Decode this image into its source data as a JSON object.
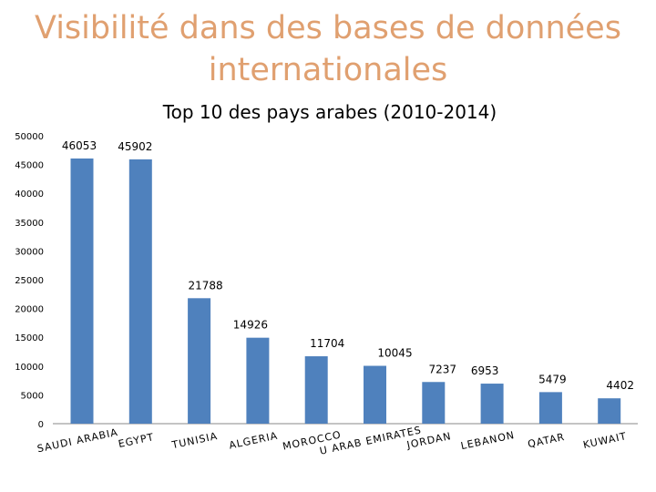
{
  "slide": {
    "title": "Visibilité dans des bases de données internationales"
  },
  "chart_data": {
    "type": "bar",
    "title": "Top 10 des pays arabes (2010-2014)",
    "xlabel": "",
    "ylabel": "",
    "ylim": [
      0,
      50000
    ],
    "yticks": [
      "0",
      "5000",
      "10000",
      "15000",
      "20000",
      "25000",
      "30000",
      "35000",
      "40000",
      "45000",
      "50000"
    ],
    "categories": [
      "SAUDI ARABIA",
      "EGYPT",
      "TUNISIA",
      "ALGERIA",
      "MOROCCO",
      "U ARAB EMIRATES",
      "JORDAN",
      "LEBANON",
      "QATAR",
      "KUWAIT"
    ],
    "values": [
      46053,
      45902,
      21788,
      14926,
      11704,
      10045,
      7237,
      6953,
      5479,
      4402
    ],
    "value_labels": [
      "46053",
      "45902",
      "21788",
      "14926",
      "11704",
      "10045",
      "7237",
      "6953",
      "5479",
      "4402"
    ],
    "bar_color": "#4f81bd",
    "grid": false,
    "legend": "none"
  }
}
